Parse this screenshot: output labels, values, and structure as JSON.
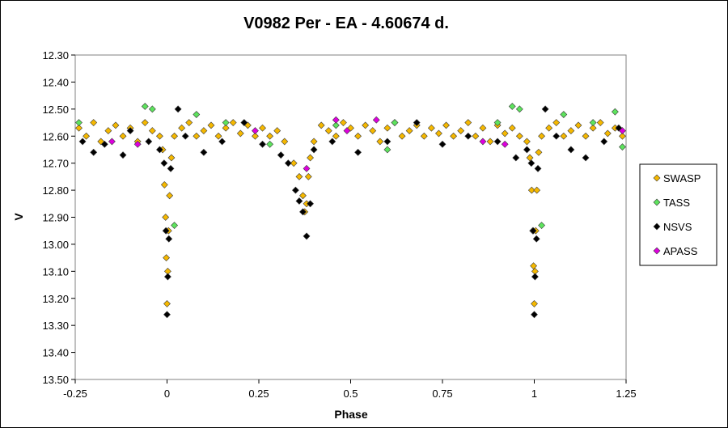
{
  "chart_data": {
    "type": "scatter",
    "title": "V0982 Per - EA - 4.60674 d.",
    "xlabel": "Phase",
    "ylabel": "V",
    "xlim": [
      -0.25,
      1.25
    ],
    "ylim": [
      12.3,
      13.5
    ],
    "y_reversed": true,
    "x_ticks": [
      "-0.25",
      "0",
      "0.25",
      "0.5",
      "0.75",
      "1",
      "1.25"
    ],
    "y_ticks": [
      "12.30",
      "12.40",
      "12.50",
      "12.60",
      "12.70",
      "12.80",
      "12.90",
      "13.00",
      "13.10",
      "13.20",
      "13.30",
      "13.40",
      "13.50"
    ],
    "grid": false,
    "legend_position": "right",
    "series": [
      {
        "name": "SWASP",
        "color": "#F5B800",
        "marker": "diamond",
        "points": [
          [
            -0.24,
            12.57
          ],
          [
            -0.22,
            12.6
          ],
          [
            -0.2,
            12.55
          ],
          [
            -0.18,
            12.62
          ],
          [
            -0.16,
            12.58
          ],
          [
            -0.14,
            12.56
          ],
          [
            -0.12,
            12.6
          ],
          [
            -0.1,
            12.57
          ],
          [
            -0.08,
            12.62
          ],
          [
            -0.06,
            12.55
          ],
          [
            -0.04,
            12.58
          ],
          [
            -0.02,
            12.6
          ],
          [
            -0.012,
            12.65
          ],
          [
            -0.007,
            12.78
          ],
          [
            -0.004,
            12.9
          ],
          [
            -0.002,
            13.05
          ],
          [
            0.0,
            13.22
          ],
          [
            0.002,
            13.1
          ],
          [
            0.004,
            12.95
          ],
          [
            0.007,
            12.82
          ],
          [
            0.012,
            12.68
          ],
          [
            0.02,
            12.6
          ],
          [
            0.04,
            12.57
          ],
          [
            0.06,
            12.55
          ],
          [
            0.08,
            12.6
          ],
          [
            0.1,
            12.58
          ],
          [
            0.12,
            12.56
          ],
          [
            0.14,
            12.6
          ],
          [
            0.16,
            12.57
          ],
          [
            0.18,
            12.55
          ],
          [
            0.2,
            12.59
          ],
          [
            0.22,
            12.56
          ],
          [
            0.24,
            12.6
          ],
          [
            0.26,
            12.57
          ],
          [
            0.28,
            12.6
          ],
          [
            0.3,
            12.58
          ],
          [
            0.32,
            12.62
          ],
          [
            0.345,
            12.7
          ],
          [
            0.36,
            12.75
          ],
          [
            0.37,
            12.82
          ],
          [
            0.375,
            12.88
          ],
          [
            0.38,
            12.85
          ],
          [
            0.385,
            12.75
          ],
          [
            0.39,
            12.68
          ],
          [
            0.4,
            12.62
          ],
          [
            0.42,
            12.56
          ],
          [
            0.44,
            12.58
          ],
          [
            0.46,
            12.6
          ],
          [
            0.48,
            12.55
          ],
          [
            0.5,
            12.57
          ],
          [
            0.52,
            12.6
          ],
          [
            0.54,
            12.56
          ],
          [
            0.56,
            12.58
          ],
          [
            0.58,
            12.62
          ],
          [
            0.6,
            12.57
          ],
          [
            0.62,
            12.55
          ],
          [
            0.64,
            12.6
          ],
          [
            0.66,
            12.58
          ],
          [
            0.68,
            12.56
          ],
          [
            0.7,
            12.6
          ],
          [
            0.72,
            12.57
          ],
          [
            0.74,
            12.59
          ],
          [
            0.76,
            12.56
          ],
          [
            0.78,
            12.6
          ],
          [
            0.8,
            12.58
          ],
          [
            0.82,
            12.55
          ],
          [
            0.84,
            12.6
          ],
          [
            0.86,
            12.57
          ],
          [
            0.88,
            12.62
          ],
          [
            0.9,
            12.56
          ],
          [
            0.92,
            12.59
          ],
          [
            0.94,
            12.57
          ],
          [
            0.96,
            12.6
          ],
          [
            0.98,
            12.62
          ],
          [
            0.988,
            12.68
          ],
          [
            0.993,
            12.8
          ],
          [
            0.996,
            12.95
          ],
          [
            0.998,
            13.08
          ],
          [
            1.0,
            13.22
          ],
          [
            1.002,
            13.1
          ],
          [
            1.004,
            12.95
          ],
          [
            1.007,
            12.8
          ],
          [
            1.012,
            12.66
          ],
          [
            1.02,
            12.6
          ],
          [
            1.04,
            12.57
          ],
          [
            1.06,
            12.55
          ],
          [
            1.08,
            12.6
          ],
          [
            1.1,
            12.58
          ],
          [
            1.12,
            12.56
          ],
          [
            1.14,
            12.6
          ],
          [
            1.16,
            12.57
          ],
          [
            1.18,
            12.55
          ],
          [
            1.2,
            12.59
          ],
          [
            1.22,
            12.57
          ],
          [
            1.24,
            12.6
          ]
        ]
      },
      {
        "name": "TASS",
        "color": "#5DE35D",
        "marker": "diamond",
        "points": [
          [
            -0.24,
            12.55
          ],
          [
            -0.06,
            12.49
          ],
          [
            -0.04,
            12.5
          ],
          [
            0.02,
            12.93
          ],
          [
            0.08,
            12.52
          ],
          [
            0.16,
            12.55
          ],
          [
            0.28,
            12.63
          ],
          [
            0.46,
            12.56
          ],
          [
            0.6,
            12.65
          ],
          [
            0.62,
            12.55
          ],
          [
            0.9,
            12.55
          ],
          [
            0.94,
            12.49
          ],
          [
            0.96,
            12.5
          ],
          [
            1.02,
            12.93
          ],
          [
            1.08,
            12.52
          ],
          [
            1.16,
            12.55
          ],
          [
            1.22,
            12.51
          ],
          [
            1.24,
            12.64
          ]
        ]
      },
      {
        "name": "NSVS",
        "color": "#000000",
        "marker": "diamond",
        "points": [
          [
            -0.23,
            12.62
          ],
          [
            -0.2,
            12.66
          ],
          [
            -0.17,
            12.63
          ],
          [
            -0.12,
            12.67
          ],
          [
            -0.1,
            12.58
          ],
          [
            -0.05,
            12.62
          ],
          [
            -0.02,
            12.65
          ],
          [
            -0.008,
            12.7
          ],
          [
            -0.003,
            12.95
          ],
          [
            0.0,
            13.26
          ],
          [
            0.002,
            13.12
          ],
          [
            0.005,
            12.98
          ],
          [
            0.01,
            12.72
          ],
          [
            0.03,
            12.5
          ],
          [
            0.05,
            12.6
          ],
          [
            0.1,
            12.66
          ],
          [
            0.15,
            12.62
          ],
          [
            0.21,
            12.55
          ],
          [
            0.26,
            12.63
          ],
          [
            0.31,
            12.67
          ],
          [
            0.33,
            12.7
          ],
          [
            0.35,
            12.8
          ],
          [
            0.36,
            12.84
          ],
          [
            0.37,
            12.88
          ],
          [
            0.38,
            12.97
          ],
          [
            0.39,
            12.85
          ],
          [
            0.4,
            12.65
          ],
          [
            0.45,
            12.62
          ],
          [
            0.52,
            12.66
          ],
          [
            0.6,
            12.62
          ],
          [
            0.68,
            12.55
          ],
          [
            0.75,
            12.63
          ],
          [
            0.82,
            12.6
          ],
          [
            0.9,
            12.62
          ],
          [
            0.95,
            12.68
          ],
          [
            0.98,
            12.65
          ],
          [
            0.992,
            12.7
          ],
          [
            0.997,
            12.95
          ],
          [
            1.0,
            13.26
          ],
          [
            1.002,
            13.12
          ],
          [
            1.006,
            12.98
          ],
          [
            1.01,
            12.72
          ],
          [
            1.03,
            12.5
          ],
          [
            1.06,
            12.6
          ],
          [
            1.1,
            12.65
          ],
          [
            1.14,
            12.68
          ],
          [
            1.19,
            12.62
          ],
          [
            1.23,
            12.57
          ]
        ]
      },
      {
        "name": "APASS",
        "color": "#DD00DD",
        "marker": "diamond",
        "points": [
          [
            -0.15,
            12.62
          ],
          [
            -0.08,
            12.63
          ],
          [
            0.24,
            12.58
          ],
          [
            0.38,
            12.72
          ],
          [
            0.46,
            12.54
          ],
          [
            0.49,
            12.58
          ],
          [
            0.57,
            12.54
          ],
          [
            0.86,
            12.62
          ],
          [
            0.92,
            12.63
          ],
          [
            1.24,
            12.58
          ]
        ]
      }
    ]
  }
}
